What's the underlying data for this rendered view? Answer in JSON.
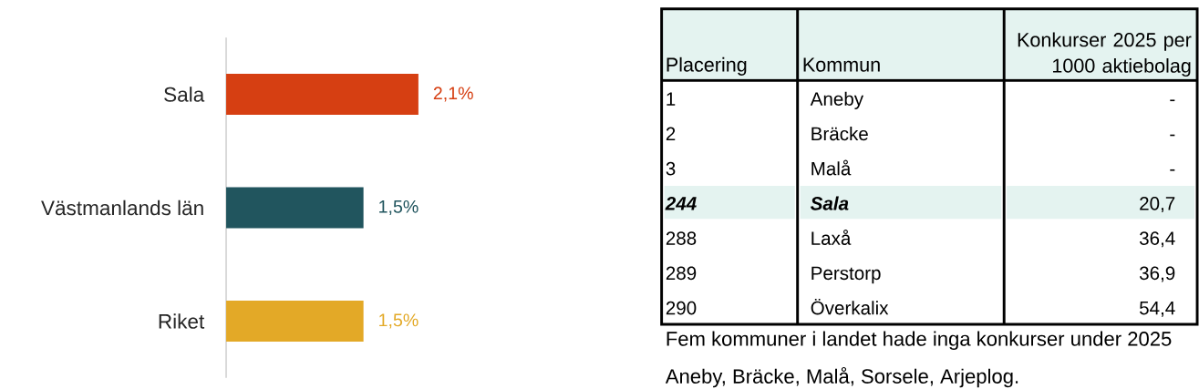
{
  "chart_data": [
    {
      "type": "bar",
      "orientation": "horizontal",
      "categories": [
        "Sala",
        "Västmanlands län",
        "Riket"
      ],
      "values": [
        2.1,
        1.5,
        1.5
      ],
      "colors": [
        "#d63f12",
        "#21555e",
        "#e3a927"
      ],
      "value_labels": [
        "2,1%",
        "1,5%",
        "1,5%"
      ]
    },
    {
      "type": "other",
      "annotations": [
        "Placering",
        "Kommun",
        "Konkurser 2025 per 1000 aktiebolag",
        "1",
        "Aneby",
        "-",
        "2",
        "Bräcke",
        "-",
        "3",
        "Malå",
        "-",
        "244",
        "Sala",
        "20,7",
        "288",
        "Laxå",
        "36,4",
        "289",
        "Perstorp",
        "36,9",
        "290",
        "Överkalix",
        "54,4",
        "Fem kommuner i landet hade inga konkurser under 2025",
        "Aneby, Bräcke, Malå, Sorsele, Arjeplog."
      ]
    }
  ]
}
